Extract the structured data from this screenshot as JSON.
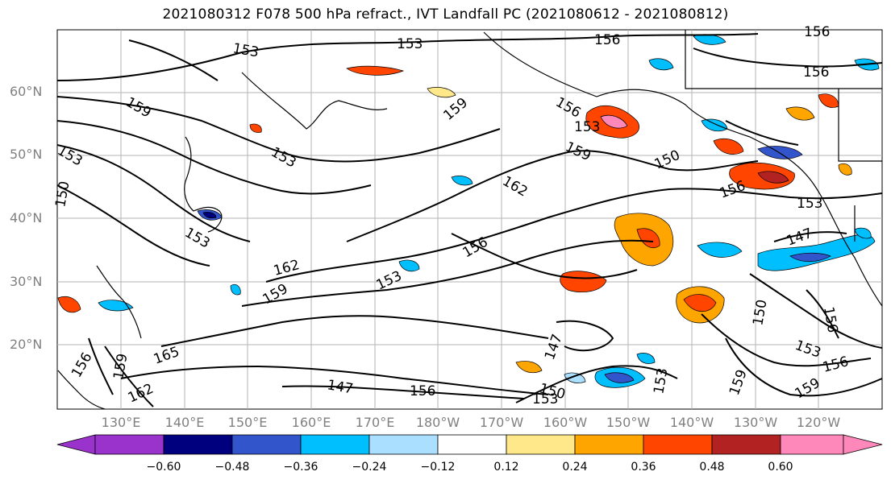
{
  "title": "2021080312 F078 500 hPa refract., IVT Landfall PC (2021080612 - 2021080812)",
  "lat_labels": [
    "60°N",
    "50°N",
    "40°N",
    "30°N",
    "20°N"
  ],
  "lon_labels": [
    "130°E",
    "140°E",
    "150°E",
    "160°E",
    "170°E",
    "180°W",
    "170°W",
    "160°W",
    "150°W",
    "140°W",
    "130°W",
    "120°W"
  ],
  "contour_labels": [
    "153",
    "153",
    "156",
    "156",
    "159",
    "159",
    "153",
    "156",
    "153",
    "150",
    "159",
    "153",
    "162",
    "150",
    "156",
    "153",
    "153",
    "156",
    "147",
    "162",
    "159",
    "153",
    "156",
    "147",
    "150",
    "156",
    "165",
    "159",
    "156",
    "162",
    "147",
    "156",
    "150",
    "153",
    "153",
    "159",
    "153",
    "159",
    "156"
  ],
  "colorbar": {
    "ticks": [
      "−0.60",
      "−0.48",
      "−0.36",
      "−0.24",
      "−0.12",
      "0.12",
      "0.24",
      "0.36",
      "0.48",
      "0.60"
    ],
    "colors": [
      "#9933cc",
      "#00007f",
      "#3355cc",
      "#00bfff",
      "#aadfff",
      "#ffffff",
      "#ffe88a",
      "#ffa500",
      "#ff4500",
      "#b22222",
      "#ff88bb"
    ]
  },
  "fill_colors": {
    "pos_low": "#ffe88a",
    "pos_mid": "#ffa500",
    "pos_high": "#ff4500",
    "pos_max": "#ff88bb",
    "neg_low": "#aadfff",
    "neg_mid": "#00bfff",
    "neg_high": "#3355cc",
    "neg_max": "#00007f"
  }
}
